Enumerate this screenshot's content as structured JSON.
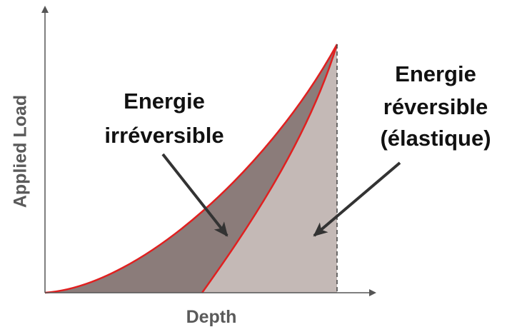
{
  "diagram": {
    "y_axis_label": "Applied Load",
    "x_axis_label": "Depth",
    "irreversible_label": [
      "Energie",
      "irréversible"
    ],
    "reversible_label": [
      "Energie",
      "réversible",
      "(élastique)"
    ]
  }
}
